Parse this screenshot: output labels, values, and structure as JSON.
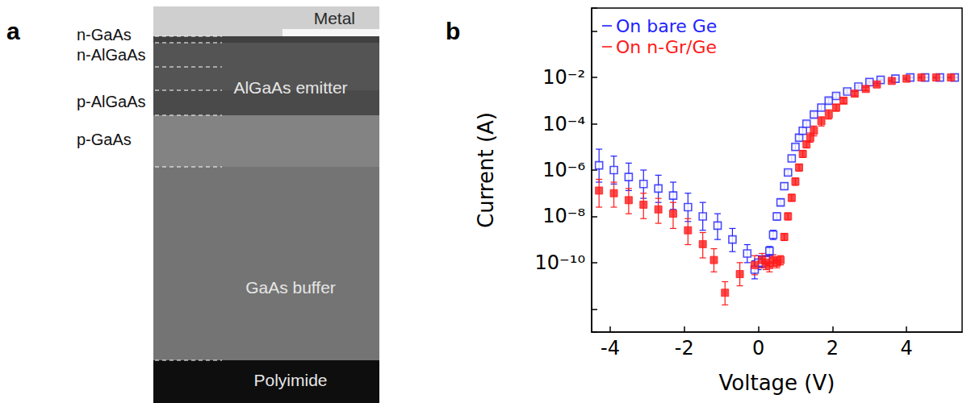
{
  "image_panel": {
    "letter": "a",
    "layer_labels": [
      "n-GaAs",
      "n-AlGaAs",
      "p-AlGaAs",
      "p-GaAs"
    ],
    "region_labels": [
      "Metal",
      "AlGaAs emitter",
      "GaAs buffer",
      "Polyimide"
    ]
  },
  "chart_data": {
    "letter": "b",
    "type": "scatter",
    "x_label": "Voltage (V)",
    "y_label": "Current (A)",
    "log": "y",
    "grid": false,
    "legend": "top-left",
    "xlim": [
      -4.5,
      5.5
    ],
    "xticks": [
      -4,
      -2,
      0,
      2,
      4
    ],
    "ylim": [
      1e-13,
      10
    ],
    "yticks": [
      {
        "value": 1e-10,
        "label": "10⁻¹⁰"
      },
      {
        "value": 1e-08,
        "label": "10⁻⁸"
      },
      {
        "value": 1e-06,
        "label": "10⁻⁶"
      },
      {
        "value": 0.0001,
        "label": "10⁻⁴"
      },
      {
        "value": 0.01,
        "label": "10⁻²"
      }
    ],
    "series": [
      {
        "name": "On bare Ge",
        "color": "#1f1fff",
        "marker": "open square",
        "x": [
          -4.3,
          -3.9,
          -3.5,
          -3.1,
          -2.7,
          -2.3,
          -1.9,
          -1.5,
          -1.1,
          -0.7,
          -0.3,
          -0.1,
          0,
          0.1,
          0.2,
          0.3,
          0.4,
          0.5,
          0.6,
          0.7,
          0.8,
          0.9,
          1.0,
          1.1,
          1.2,
          1.3,
          1.5,
          1.7,
          1.9,
          2.1,
          2.4,
          2.7,
          3.0,
          3.3,
          3.7,
          4.1,
          4.5,
          4.9,
          5.3
        ],
        "values": [
          1.6e-06,
          1e-06,
          5e-07,
          2.5e-07,
          1.6e-07,
          7.9e-08,
          2.5e-08,
          1e-08,
          4e-09,
          1e-09,
          2.5e-10,
          5e-11,
          1e-10,
          1e-10,
          1.3e-10,
          3.2e-10,
          1.6e-09,
          1e-08,
          4e-08,
          2e-07,
          7.9e-07,
          3.2e-06,
          1e-05,
          2.5e-05,
          5e-05,
          0.0001,
          0.00025,
          0.0005,
          0.001,
          0.0016,
          0.0025,
          0.004,
          0.0063,
          0.0079,
          0.0089,
          0.01,
          0.01,
          0.01,
          0.01
        ],
        "error_low": [
          3e-07,
          2.5e-07,
          1.3e-07,
          6e-08,
          4e-08,
          2e-08,
          6e-09,
          2.5e-09,
          1e-09,
          3e-10,
          1e-10,
          2e-11,
          5e-11,
          6e-11,
          8e-11,
          2e-10,
          1e-09,
          7e-09,
          3e-08,
          1.5e-07,
          6e-07,
          2.4e-06,
          7.5e-06,
          1.9e-05,
          3.8e-05,
          7.5e-05,
          0.00019,
          0.00038,
          0.0008,
          0.0013,
          0.0021,
          0.0035,
          0.0057,
          0.0073,
          0.0084,
          0.0095,
          0.0095,
          0.0095,
          0.0095
        ],
        "error_high": [
          8e-06,
          4e-06,
          2e-06,
          1e-06,
          6e-07,
          3e-07,
          1e-07,
          4e-08,
          1.3e-08,
          3e-09,
          6e-10,
          1.2e-10,
          2e-10,
          1.8e-10,
          2e-10,
          5e-10,
          2.5e-09,
          1.4e-08,
          5.5e-08,
          2.7e-07,
          1e-06,
          4.2e-06,
          1.3e-05,
          3.3e-05,
          6.6e-05,
          0.00013,
          0.00033,
          0.00066,
          0.00125,
          0.002,
          0.003,
          0.0046,
          0.007,
          0.0085,
          0.0094,
          0.0105,
          0.0105,
          0.0105,
          0.0105
        ]
      },
      {
        "name": "On n-Gr/Ge",
        "color": "#ff1a1a",
        "marker": "square",
        "x": [
          -4.3,
          -3.9,
          -3.5,
          -3.1,
          -2.7,
          -2.3,
          -1.9,
          -1.5,
          -1.2,
          -0.9,
          -0.5,
          -0.1,
          0.1,
          0.2,
          0.3,
          0.4,
          0.5,
          0.6,
          0.7,
          0.8,
          0.9,
          1.0,
          1.1,
          1.2,
          1.3,
          1.4,
          1.5,
          1.7,
          1.9,
          2.1,
          2.3,
          2.6,
          2.9,
          3.2,
          3.6,
          4.0,
          4.4,
          4.8,
          5.2
        ],
        "values": [
          1.3e-07,
          1e-07,
          5e-08,
          3.2e-08,
          2e-08,
          1.3e-08,
          2.5e-09,
          6.3e-10,
          1.3e-10,
          5e-12,
          3.2e-11,
          7.9e-11,
          1.3e-10,
          1e-10,
          7.9e-11,
          1.3e-10,
          1e-10,
          1.3e-10,
          1.3e-09,
          1e-08,
          6.3e-08,
          3.2e-07,
          1.3e-06,
          5e-06,
          1.3e-05,
          2.5e-05,
          5e-05,
          0.00013,
          0.00025,
          0.0005,
          0.001,
          0.002,
          0.0032,
          0.005,
          0.0071,
          0.0089,
          0.01,
          0.01,
          0.01
        ],
        "error_low": [
          2.5e-08,
          2.5e-08,
          1.3e-08,
          8e-09,
          5e-09,
          3e-09,
          6e-10,
          1.6e-10,
          4e-11,
          1.5e-12,
          1e-11,
          3e-11,
          6e-11,
          5e-11,
          4e-11,
          7e-11,
          6e-11,
          8e-11,
          9e-10,
          7e-09,
          4.5e-08,
          2.2e-07,
          9e-07,
          3.5e-06,
          9e-06,
          1.6e-05,
          3e-05,
          8e-05,
          0.00016,
          0.00035,
          0.00075,
          0.0016,
          0.0027,
          0.0044,
          0.0066,
          0.0084,
          0.0095,
          0.0095,
          0.0095
        ],
        "error_high": [
          4e-07,
          3e-07,
          1.6e-07,
          1e-07,
          6e-08,
          4e-08,
          8e-09,
          2e-09,
          4e-10,
          1.5e-11,
          1e-10,
          2e-10,
          2.5e-10,
          2e-10,
          1.6e-10,
          2.2e-10,
          1.7e-10,
          2e-10,
          1.8e-09,
          1.4e-08,
          9e-08,
          4.5e-07,
          1.8e-06,
          7e-06,
          1.8e-05,
          4e-05,
          8e-05,
          0.0002,
          0.0004,
          0.0007,
          0.0013,
          0.0025,
          0.0038,
          0.0057,
          0.0076,
          0.0094,
          0.0105,
          0.0105,
          0.0105
        ]
      }
    ]
  }
}
